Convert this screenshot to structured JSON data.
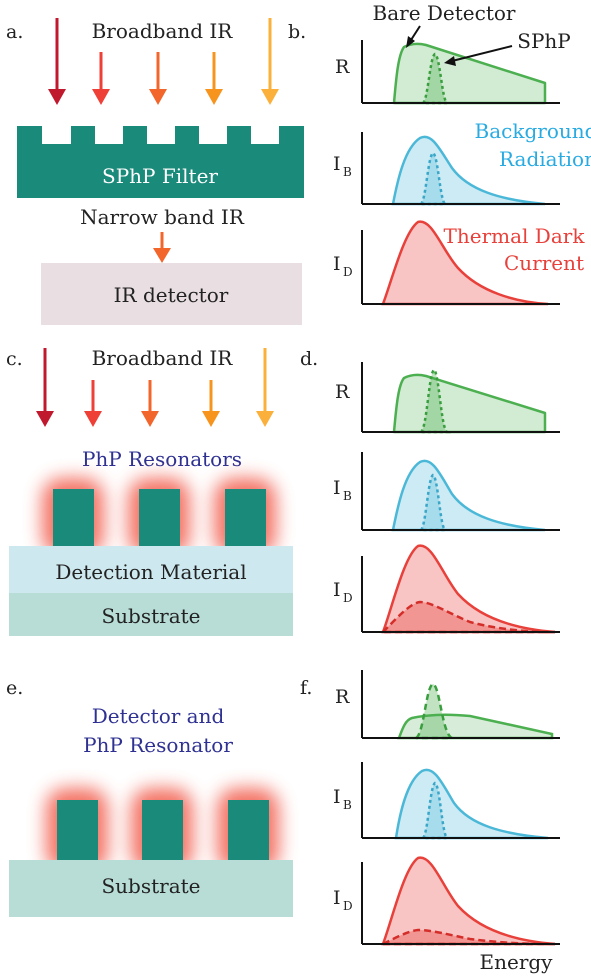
{
  "panels": {
    "a": "a.",
    "b": "b.",
    "c": "c.",
    "d": "d.",
    "e": "e.",
    "f": "f."
  },
  "arrow_colors": [
    "#c0192e",
    "#ee4037",
    "#f2652b",
    "#f7941e",
    "#fbb03b"
  ],
  "colors": {
    "teal": "#1a8a7a",
    "detector_box": "#e9dfe2",
    "detection_material": "#cde9ef",
    "substrate": "#b7ddd6",
    "glow": "#f15a4a",
    "green": "#4caf50",
    "blue": "#4bb8d8",
    "red": "#e8403a",
    "blue_text": "#29abe2",
    "navy_text": "#2e3192"
  },
  "a": {
    "broadband": "Broadband IR",
    "filter": "SPhP Filter",
    "narrow": "Narrow band IR",
    "detector": "IR detector"
  },
  "b": {
    "bare_detector": "Bare Detector",
    "sphp": "SPhP",
    "background_1": "Background",
    "background_2": "Radiation",
    "thermal_1": "Thermal Dark",
    "thermal_2": "Current"
  },
  "c": {
    "broadband": "Broadband IR",
    "resonators": "PhP Resonators",
    "detection_material": "Detection Material",
    "substrate": "Substrate"
  },
  "e": {
    "title_1": "Detector and",
    "title_2": "PhP Resonator",
    "substrate": "Substrate"
  },
  "axes": {
    "R": "R",
    "I": "I",
    "B": "B",
    "D": "D",
    "energy": "Energy"
  }
}
